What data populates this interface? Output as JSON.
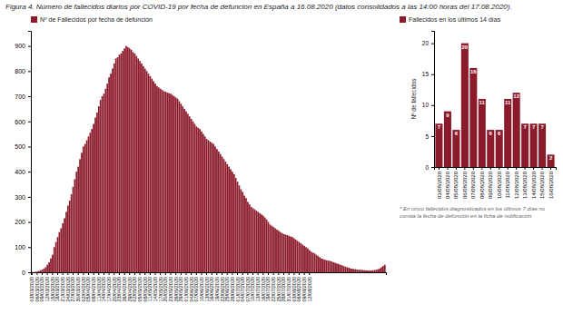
{
  "chart_data": [
    {
      "type": "bar",
      "title": "Figura 4. Número de fallecidos diarios por COVID-19 por fecha de defunción en España a 16.08.2020 (datos consolidados a las 14:00 horas del 17.08.2020).",
      "categories": [
        "03/03/2020",
        null,
        null,
        "06/03/2020",
        null,
        null,
        "09/03/2020",
        null,
        null,
        "12/03/2020",
        null,
        null,
        "15/03/2020",
        null,
        null,
        "18/03/2020",
        null,
        null,
        "21/03/2020",
        null,
        null,
        "24/03/2020",
        null,
        null,
        "27/03/2020",
        null,
        null,
        "30/03/2020",
        null,
        null,
        "02/04/2020",
        null,
        null,
        "05/04/2020",
        null,
        null,
        "08/04/2020",
        null,
        null,
        "11/04/2020",
        null,
        null,
        "14/04/2020",
        null,
        null,
        "17/04/2020",
        null,
        null,
        "20/04/2020",
        null,
        null,
        "23/04/2020",
        null,
        null,
        "26/04/2020",
        null,
        null,
        "29/04/2020",
        null,
        null,
        "02/05/2020",
        null,
        null,
        "05/05/2020",
        null,
        null,
        "08/05/2020",
        null,
        null,
        "11/05/2020",
        null,
        null,
        "14/05/2020",
        null,
        null,
        "17/05/2020",
        null,
        null,
        "20/05/2020",
        null,
        null,
        "23/05/2020",
        null,
        null,
        "26/05/2020",
        null,
        null,
        "29/05/2020",
        null,
        null,
        "01/06/2020",
        null,
        null,
        "04/06/2020",
        null,
        null,
        "07/06/2020",
        null,
        null,
        "10/06/2020",
        null,
        null,
        "13/06/2020",
        null,
        null,
        "16/06/2020",
        null,
        null,
        "19/06/2020",
        null,
        null,
        "22/06/2020",
        null,
        null,
        "25/06/2020",
        null,
        null,
        "28/06/2020",
        null,
        null,
        "01/07/2020",
        null,
        null,
        "04/07/2020",
        null,
        null,
        "07/07/2020",
        null,
        null,
        "10/07/2020",
        null,
        null,
        "13/07/2020",
        null,
        null,
        "16/07/2020",
        null,
        null,
        "19/07/2020",
        null,
        null,
        "22/07/2020",
        null,
        null,
        "25/07/2020",
        null,
        null,
        "28/07/2020",
        null,
        null,
        "31/07/2020",
        null,
        null,
        "03/08/2020",
        null,
        null,
        "06/08/2020",
        null,
        null,
        "09/08/2020",
        null,
        null,
        "12/08/2020",
        null,
        null,
        null,
        null,
        null,
        null,
        null,
        null,
        null,
        null,
        null,
        null,
        null,
        null,
        null,
        null,
        null,
        null,
        null,
        null,
        null,
        null,
        null,
        null,
        null,
        null,
        null,
        null,
        null,
        null,
        null,
        null,
        null,
        null,
        null,
        null,
        null,
        null,
        null,
        null,
        null,
        null,
        null,
        null
      ],
      "series": [
        {
          "name": "Nº de Fallecidos por fecha de defunción",
          "color": "#8B1A2A",
          "values": [
            1,
            1,
            2,
            3,
            5,
            8,
            10,
            15,
            20,
            30,
            40,
            55,
            70,
            100,
            120,
            140,
            160,
            175,
            195,
            215,
            240,
            265,
            285,
            310,
            340,
            370,
            400,
            420,
            450,
            475,
            500,
            510,
            525,
            540,
            555,
            570,
            590,
            615,
            635,
            660,
            685,
            700,
            710,
            730,
            750,
            775,
            790,
            810,
            830,
            850,
            855,
            865,
            870,
            880,
            890,
            900,
            895,
            890,
            885,
            875,
            870,
            860,
            850,
            840,
            830,
            820,
            810,
            800,
            790,
            780,
            770,
            760,
            750,
            740,
            735,
            730,
            725,
            720,
            718,
            715,
            712,
            710,
            705,
            700,
            695,
            690,
            680,
            670,
            660,
            650,
            640,
            630,
            620,
            610,
            600,
            590,
            580,
            575,
            570,
            560,
            550,
            540,
            530,
            525,
            520,
            515,
            510,
            500,
            490,
            480,
            470,
            460,
            450,
            440,
            430,
            420,
            410,
            400,
            390,
            375,
            360,
            345,
            330,
            320,
            305,
            295,
            280,
            270,
            260,
            255,
            250,
            245,
            240,
            235,
            230,
            225,
            218,
            210,
            200,
            190,
            185,
            180,
            175,
            170,
            165,
            160,
            155,
            152,
            150,
            148,
            145,
            142,
            140,
            135,
            130,
            125,
            120,
            115,
            110,
            105,
            100,
            95,
            88,
            82,
            78,
            75,
            70,
            65,
            60,
            55,
            52,
            50,
            48,
            47,
            45,
            43,
            40,
            38,
            35,
            33,
            30,
            28,
            25,
            22,
            20,
            18,
            15,
            14,
            13,
            12,
            11,
            10,
            10,
            9,
            8,
            8,
            7,
            7,
            7,
            8,
            9,
            10,
            12,
            15,
            20,
            25,
            30
          ]
        }
      ],
      "ylim": [
        0,
        960
      ],
      "yticks": [
        0,
        100,
        200,
        300,
        400,
        500,
        600,
        700,
        800,
        900
      ],
      "legend": "upper left",
      "grid": false
    },
    {
      "type": "bar",
      "categories": [
        "03/08/2020",
        "04/08/2020",
        "05/08/2020",
        "06/08/2020",
        "07/08/2020",
        "08/08/2020",
        "09/08/2020",
        "10/08/2020",
        "11/08/2020",
        "12/08/2020",
        "13/08/2020",
        "14/08/2020",
        "15/08/2020",
        "16/08/2020"
      ],
      "series": [
        {
          "name": "Fallecidos en los últimos 14 días",
          "color": "#8B1A2A",
          "values": [
            7,
            9,
            6,
            20,
            16,
            11,
            6,
            6,
            11,
            12,
            7,
            7,
            7,
            2
          ]
        }
      ],
      "ylabel": "Nº de fallecidos",
      "ylim": [
        0,
        22
      ],
      "yticks": [
        0,
        5,
        10,
        15,
        20
      ],
      "legend": "upper left",
      "data_labels": true,
      "grid": false,
      "annotations": [
        "* En cinco fallecidos diagnosticados en los últimos 7 días no consta la fecha de defunción en la ficha de notificación"
      ]
    }
  ]
}
